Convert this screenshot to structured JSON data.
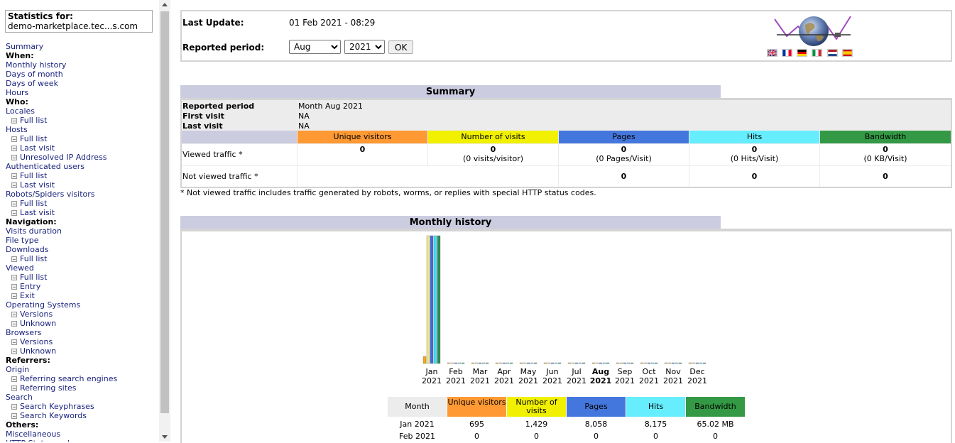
{
  "sidebar": {
    "stats_label": "Statistics for:",
    "site": "demo-marketplace.tec...s.com",
    "menu": [
      {
        "type": "link",
        "label": "Summary"
      },
      {
        "type": "header",
        "label": "When:"
      },
      {
        "type": "link",
        "label": "Monthly history"
      },
      {
        "type": "link",
        "label": "Days of month"
      },
      {
        "type": "link",
        "label": "Days of week"
      },
      {
        "type": "link",
        "label": "Hours"
      },
      {
        "type": "header",
        "label": "Who:"
      },
      {
        "type": "link",
        "label": "Locales"
      },
      {
        "type": "sub",
        "label": "Full list"
      },
      {
        "type": "link",
        "label": "Hosts"
      },
      {
        "type": "sub",
        "label": "Full list"
      },
      {
        "type": "sub",
        "label": "Last visit"
      },
      {
        "type": "sub",
        "label": "Unresolved IP Address"
      },
      {
        "type": "link",
        "label": "Authenticated users"
      },
      {
        "type": "sub",
        "label": "Full list"
      },
      {
        "type": "sub",
        "label": "Last visit"
      },
      {
        "type": "link",
        "label": "Robots/Spiders visitors"
      },
      {
        "type": "sub",
        "label": "Full list"
      },
      {
        "type": "sub",
        "label": "Last visit"
      },
      {
        "type": "header",
        "label": "Navigation:"
      },
      {
        "type": "link",
        "label": "Visits duration"
      },
      {
        "type": "link",
        "label": "File type"
      },
      {
        "type": "link",
        "label": "Downloads"
      },
      {
        "type": "sub",
        "label": "Full list"
      },
      {
        "type": "link",
        "label": "Viewed"
      },
      {
        "type": "sub",
        "label": "Full list"
      },
      {
        "type": "sub",
        "label": "Entry"
      },
      {
        "type": "sub",
        "label": "Exit"
      },
      {
        "type": "link",
        "label": "Operating Systems"
      },
      {
        "type": "sub",
        "label": "Versions"
      },
      {
        "type": "sub",
        "label": "Unknown"
      },
      {
        "type": "link",
        "label": "Browsers"
      },
      {
        "type": "sub",
        "label": "Versions"
      },
      {
        "type": "sub",
        "label": "Unknown"
      },
      {
        "type": "header",
        "label": "Referrers:"
      },
      {
        "type": "link",
        "label": "Origin"
      },
      {
        "type": "sub",
        "label": "Referring search engines"
      },
      {
        "type": "sub",
        "label": "Referring sites"
      },
      {
        "type": "link",
        "label": "Search"
      },
      {
        "type": "sub",
        "label": "Search Keyphrases"
      },
      {
        "type": "sub",
        "label": "Search Keywords"
      },
      {
        "type": "header",
        "label": "Others:"
      },
      {
        "type": "link",
        "label": "Miscellaneous"
      },
      {
        "type": "link",
        "label": "HTTP Status codes"
      }
    ]
  },
  "top": {
    "last_update_label": "Last Update:",
    "last_update_value": "01 Feb 2021 - 08:29",
    "period_label": "Reported period:",
    "month_selected": "Aug",
    "year_selected": "2021",
    "ok_label": "OK"
  },
  "summary": {
    "title": "Summary",
    "reported_period_label": "Reported period",
    "reported_period_value": "Month Aug 2021",
    "first_visit_label": "First visit",
    "first_visit_value": "NA",
    "last_visit_label": "Last visit",
    "last_visit_value": "NA",
    "columns": [
      "Unique visitors",
      "Number of visits",
      "Pages",
      "Hits",
      "Bandwidth"
    ],
    "viewed_label": "Viewed traffic *",
    "viewed": {
      "unique": "0",
      "visits": "0",
      "visits_sub": "(0 visits/visitor)",
      "pages": "0",
      "pages_sub": "(0 Pages/Visit)",
      "hits": "0",
      "hits_sub": "(0 Hits/Visit)",
      "bandwidth": "0",
      "bandwidth_sub": "(0 KB/Visit)"
    },
    "not_viewed_label": "Not viewed traffic *",
    "not_viewed": {
      "pages": "0",
      "hits": "0",
      "bandwidth": "0"
    },
    "note": "* Not viewed traffic includes traffic generated by robots, worms, or replies with special HTTP status codes."
  },
  "history": {
    "title": "Monthly history",
    "table_headers": [
      "Month",
      "Unique visitors",
      "Number of visits",
      "Pages",
      "Hits",
      "Bandwidth"
    ],
    "rows": [
      [
        "Jan 2021",
        "695",
        "1,429",
        "8,058",
        "8,175",
        "65.02 MB"
      ],
      [
        "Feb 2021",
        "0",
        "0",
        "0",
        "0",
        "0"
      ]
    ]
  },
  "chart_data": {
    "type": "bar",
    "categories": [
      "Jan",
      "Feb",
      "Mar",
      "Apr",
      "May",
      "Jun",
      "Jul",
      "Aug",
      "Sep",
      "Oct",
      "Nov",
      "Dec"
    ],
    "years": [
      "2021",
      "2021",
      "2021",
      "2021",
      "2021",
      "2021",
      "2021",
      "2021",
      "2021",
      "2021",
      "2021",
      "2021"
    ],
    "highlight_category": "Aug",
    "series": [
      {
        "name": "Unique visitors",
        "color": "#f5a623",
        "values": [
          695,
          0,
          0,
          0,
          0,
          0,
          0,
          0,
          0,
          0,
          0,
          0
        ]
      },
      {
        "name": "Number of visits",
        "color": "#f0e68c",
        "values": [
          1429,
          0,
          0,
          0,
          0,
          0,
          0,
          0,
          0,
          0,
          0,
          0
        ]
      },
      {
        "name": "Pages",
        "color": "#4169e1",
        "values": [
          8058,
          0,
          0,
          0,
          0,
          0,
          0,
          0,
          0,
          0,
          0,
          0
        ]
      },
      {
        "name": "Hits",
        "color": "#40e0f0",
        "values": [
          8175,
          0,
          0,
          0,
          0,
          0,
          0,
          0,
          0,
          0,
          0,
          0
        ]
      },
      {
        "name": "Bandwidth",
        "color": "#2e8b57",
        "values": [
          65.02,
          0,
          0,
          0,
          0,
          0,
          0,
          0,
          0,
          0,
          0,
          0
        ]
      }
    ],
    "grid": false
  },
  "colors": {
    "unique": "#ff9933",
    "visits": "#f0f000",
    "pages": "#4477dd",
    "hits": "#66eeff",
    "bandwidth": "#339944",
    "section_title_bg": "#cccce0"
  }
}
